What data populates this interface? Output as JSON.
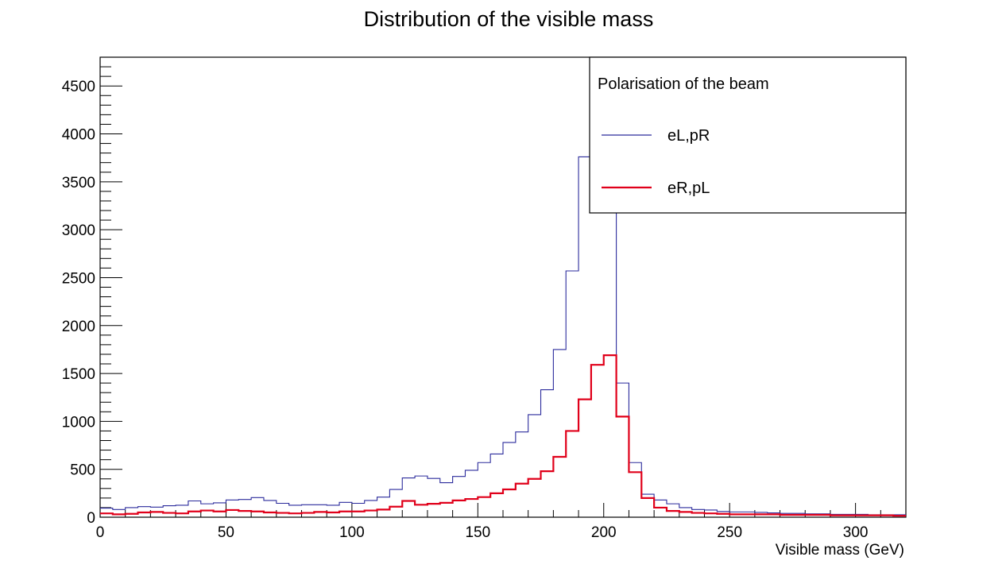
{
  "chart_data": {
    "type": "histogram",
    "title": "Distribution of the visible mass",
    "xlabel": "Visible mass (GeV)",
    "ylabel": "",
    "xlim": [
      0,
      320
    ],
    "ylim": [
      0,
      4800
    ],
    "bin_width": 5,
    "x_ticks": [
      0,
      50,
      100,
      150,
      200,
      250,
      300
    ],
    "y_ticks": [
      0,
      500,
      1000,
      1500,
      2000,
      2500,
      3000,
      3500,
      4000,
      4500
    ],
    "grid": false,
    "legend": {
      "title": "Polarisation of the beam",
      "position": "top-right"
    },
    "series": [
      {
        "name": "eL,pR",
        "color": "#2b2b9c",
        "line_style": "thin",
        "bin_edges_start": 0,
        "values": [
          95,
          80,
          100,
          110,
          105,
          120,
          125,
          170,
          140,
          150,
          180,
          185,
          205,
          175,
          145,
          125,
          130,
          130,
          125,
          155,
          145,
          175,
          210,
          290,
          410,
          430,
          405,
          360,
          425,
          490,
          570,
          660,
          780,
          890,
          1070,
          1330,
          1750,
          2570,
          3760,
          4570,
          3370,
          1400,
          570,
          240,
          180,
          140,
          100,
          80,
          75,
          60,
          55,
          55,
          50,
          45,
          40,
          40,
          35,
          35,
          30,
          30,
          30,
          25,
          25,
          25,
          20,
          20,
          20,
          20,
          20,
          15,
          15,
          15,
          15,
          15,
          15,
          10,
          10,
          10,
          10,
          10,
          10,
          10,
          10,
          10,
          10,
          10,
          10,
          10,
          8,
          8,
          8,
          8,
          8,
          8,
          8,
          5,
          5,
          5,
          5,
          5,
          5,
          5,
          5,
          5,
          5,
          5,
          5,
          5,
          5,
          3,
          3,
          3,
          3,
          3,
          2,
          2,
          2,
          2,
          2,
          2
        ]
      },
      {
        "name": "eR,pL",
        "color": "#e0001a",
        "line_style": "thick",
        "bin_edges_start": 0,
        "values": [
          40,
          30,
          35,
          50,
          55,
          45,
          40,
          60,
          70,
          60,
          75,
          65,
          60,
          50,
          45,
          40,
          45,
          55,
          50,
          60,
          60,
          70,
          80,
          110,
          170,
          130,
          140,
          150,
          175,
          190,
          210,
          250,
          290,
          350,
          400,
          480,
          630,
          900,
          1230,
          1590,
          1690,
          1050,
          470,
          200,
          100,
          65,
          55,
          45,
          40,
          35,
          30,
          30,
          30,
          30,
          25,
          25,
          25,
          25,
          20,
          20,
          20,
          20,
          20,
          15,
          15,
          15,
          15,
          15,
          15,
          12,
          12,
          12,
          12,
          10,
          10,
          10,
          10,
          10,
          10,
          10,
          10,
          10,
          8,
          8,
          8,
          8,
          8,
          8,
          8,
          6,
          6,
          6,
          6,
          5,
          5,
          5,
          5,
          5,
          5,
          5,
          5,
          5,
          5,
          4,
          4,
          4,
          4,
          4,
          3,
          3,
          3,
          3,
          3,
          3,
          2,
          2,
          2,
          2,
          2,
          2
        ]
      }
    ]
  }
}
